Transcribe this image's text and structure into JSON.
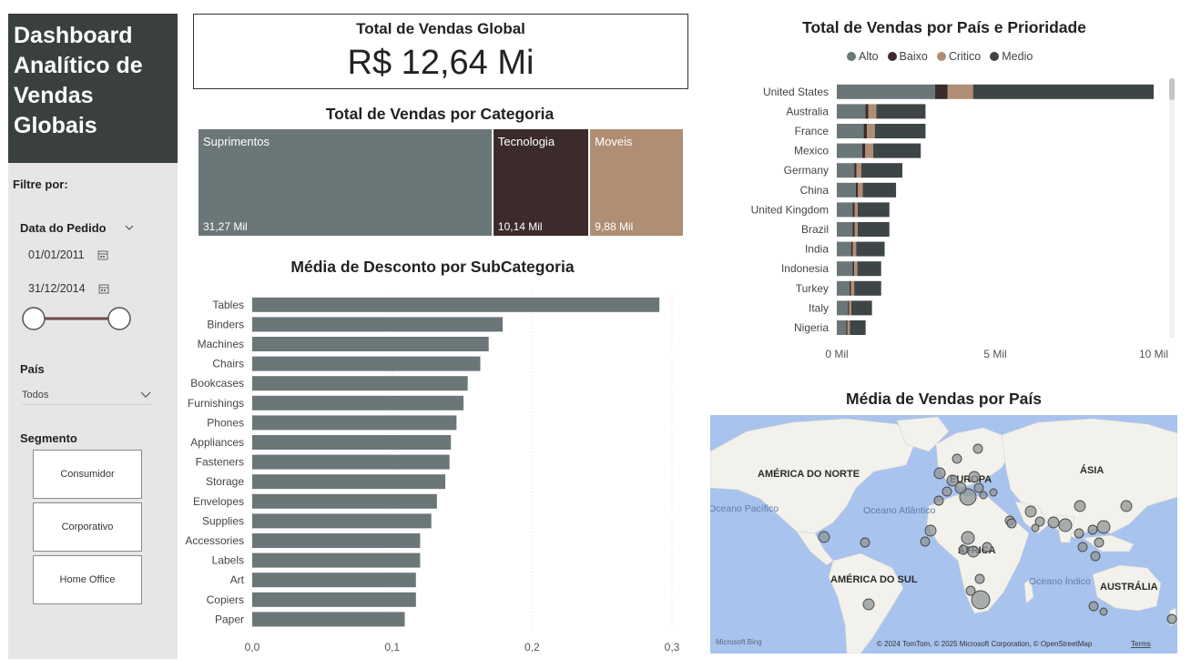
{
  "sidebar": {
    "title": "Dashboard Analítico de Vendas Globais",
    "filter_label": "Filtre por:",
    "date_label": "Data do Pedido",
    "date_start": "01/01/2011",
    "date_end": "31/12/2014",
    "country_label": "País",
    "country_value": "Todos",
    "segment_label": "Segmento",
    "segments": [
      "Consumidor",
      "Corporativo",
      "Home Office"
    ]
  },
  "kpi": {
    "title": "Total de Vendas Global",
    "value": "R$ 12,64 Mi"
  },
  "colors": {
    "alto": "#6b7678",
    "baixo": "#3b2c2b",
    "critico": "#b08e74",
    "medio": "#3e4547",
    "bar": "#6b7678",
    "sidebar_title_bg": "#3a3f3f",
    "sidebar_bg": "#e6e6e6",
    "map_water": "#a8c3ee",
    "map_land": "#f2f1ec"
  },
  "treemap": {
    "title": "Total de Vendas por Categoria",
    "chart_data": {
      "type": "treemap",
      "categories": [
        "Suprimentos",
        "Tecnologia",
        "Moveis"
      ],
      "values": [
        31.27,
        10.14,
        9.88
      ],
      "value_labels": [
        "31,27 Mil",
        "10,14 Mil",
        "9,88 Mil"
      ],
      "unit": "Mil"
    }
  },
  "discount_chart": {
    "title": "Média de Desconto por SubCategoria",
    "chart_data": {
      "type": "bar",
      "orientation": "horizontal",
      "categories": [
        "Tables",
        "Binders",
        "Machines",
        "Chairs",
        "Bookcases",
        "Furnishings",
        "Phones",
        "Appliances",
        "Fasteners",
        "Storage",
        "Envelopes",
        "Supplies",
        "Accessories",
        "Labels",
        "Art",
        "Copiers",
        "Paper"
      ],
      "values": [
        0.291,
        0.179,
        0.169,
        0.163,
        0.154,
        0.151,
        0.146,
        0.142,
        0.141,
        0.138,
        0.132,
        0.128,
        0.12,
        0.12,
        0.117,
        0.117,
        0.109
      ],
      "xlim": [
        0,
        0.3
      ],
      "xticks": [
        "0,0",
        "0,1",
        "0,2",
        "0,3"
      ],
      "grid": true
    }
  },
  "priority_chart": {
    "title": "Total de Vendas por País e Prioridade",
    "chart_data": {
      "type": "bar",
      "orientation": "horizontal",
      "stacked": true,
      "legend_position": "top",
      "categories": [
        "United States",
        "Australia",
        "France",
        "Mexico",
        "Germany",
        "China",
        "United Kingdom",
        "Brazil",
        "India",
        "Indonesia",
        "Turkey",
        "Italy",
        "Nigeria"
      ],
      "series": [
        {
          "name": "Alto",
          "values": [
            3.1,
            0.9,
            0.85,
            0.8,
            0.55,
            0.6,
            0.5,
            0.5,
            0.45,
            0.5,
            0.4,
            0.35,
            0.3
          ]
        },
        {
          "name": "Baixo",
          "values": [
            0.4,
            0.1,
            0.1,
            0.1,
            0.07,
            0.07,
            0.06,
            0.06,
            0.06,
            0.05,
            0.05,
            0.04,
            0.04
          ]
        },
        {
          "name": "Critico",
          "values": [
            0.8,
            0.25,
            0.25,
            0.25,
            0.15,
            0.15,
            0.1,
            0.1,
            0.1,
            0.1,
            0.1,
            0.07,
            0.07
          ]
        },
        {
          "name": "Medio",
          "values": [
            5.7,
            1.55,
            1.6,
            1.5,
            1.3,
            1.05,
            1.0,
            1.0,
            0.9,
            0.75,
            0.85,
            0.65,
            0.5
          ]
        }
      ],
      "xlim": [
        0,
        10
      ],
      "xticks": [
        "0 Mil",
        "5 Mil",
        "10 Mil"
      ]
    }
  },
  "map": {
    "title": "Média de Vendas por País",
    "labels": [
      "AMÉRICA DO NORTE",
      "EUROPA",
      "ÁSIA",
      "ÁFRICA",
      "AMÉRICA DO SUL",
      "AUSTRÁLIA"
    ],
    "ocean_labels": [
      "Oceano Pacífico",
      "Oceano Atlântico",
      "Oceano Índico"
    ],
    "brand": "Microsoft Bing",
    "attribution": "© 2024 TomTom, © 2025 Microsoft Corporation, © OpenStreetMap",
    "terms": "Terms"
  }
}
